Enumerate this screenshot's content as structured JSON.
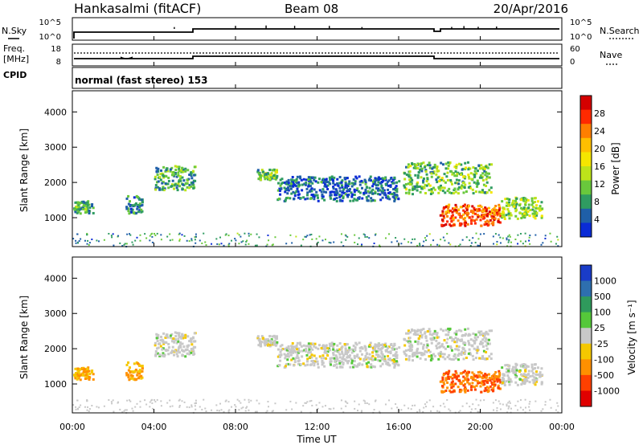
{
  "header": {
    "station": "Hankasalmi (fitACF)",
    "beam": "Beam 08",
    "date": "20/Apr/2016"
  },
  "strip": {
    "nsky_label": "N.Sky",
    "nsearch_label": "N.Search",
    "freq_label_1": "Freq.",
    "freq_label_2": "[MHz]",
    "cpid_label": "CPID",
    "nave_label": "Nave",
    "left_ticks_top": [
      "10^5",
      "10^0"
    ],
    "right_ticks_top": [
      "10^5",
      "10^0"
    ],
    "left_ticks_freq": [
      "18",
      "8"
    ],
    "right_ticks_nave": [
      "60",
      "0"
    ],
    "mode_text": "normal (fast stereo) 153"
  },
  "panels": {
    "y_axis_label": "Slant Range [km]",
    "y_ticks": [
      "4000",
      "3000",
      "2000",
      "1000"
    ],
    "x_ticks": [
      "00:00",
      "04:00",
      "08:00",
      "12:00",
      "16:00",
      "20:00",
      "00:00"
    ],
    "x_axis_label": "Time UT"
  },
  "power_scale": {
    "label": "Power [dB]",
    "ticks": [
      "28",
      "24",
      "20",
      "16",
      "12",
      "8",
      "4"
    ],
    "colors": [
      "#d40000",
      "#ff2a00",
      "#ff7f00",
      "#ffbf00",
      "#f5e600",
      "#bde31a",
      "#69c83c",
      "#2f9c61",
      "#1f5fa8",
      "#0a2bd6"
    ]
  },
  "velocity_scale": {
    "label": "Velocity [m s⁻¹]",
    "ticks": [
      "1000",
      "500",
      "100",
      "25",
      "-25",
      "-100",
      "-500",
      "-1000"
    ],
    "colors": [
      "#1a3cc8",
      "#2e6fae",
      "#2f9a5c",
      "#55c83a",
      "#c8c8c8",
      "#f5c800",
      "#ff9000",
      "#ff4000",
      "#e00000"
    ]
  },
  "chart_data": {
    "type": "heatmap",
    "x_range_hours": [
      0,
      24
    ],
    "y_range_km": [
      180,
      4600
    ],
    "regions": [
      {
        "name": "early-patch",
        "t": [
          0.0,
          1.0
        ],
        "r": [
          1150,
          1500
        ],
        "power_db": 10,
        "velocity": -100
      },
      {
        "name": "patch-3h",
        "t": [
          2.6,
          3.4
        ],
        "r": [
          1150,
          1650
        ],
        "power_db": 8,
        "velocity": -100
      },
      {
        "name": "band-4-6h",
        "t": [
          4.0,
          6.0
        ],
        "r": [
          1800,
          2500
        ],
        "power_db": 10,
        "velocity": 0
      },
      {
        "name": "band-9h",
        "t": [
          9.0,
          10.0
        ],
        "r": [
          2100,
          2400
        ],
        "power_db": 12,
        "velocity": 0
      },
      {
        "name": "diffuse-10-16h",
        "t": [
          10.0,
          16.0
        ],
        "r": [
          1500,
          2200
        ],
        "power_db": 6,
        "velocity": 0
      },
      {
        "name": "evening-band",
        "t": [
          16.2,
          20.5
        ],
        "r": [
          1700,
          2600
        ],
        "power_db": 12,
        "velocity": 0
      },
      {
        "name": "strong-echo",
        "t": [
          18.0,
          21.0
        ],
        "r": [
          800,
          1400
        ],
        "power_db": 26,
        "velocity": -500
      },
      {
        "name": "late-patch",
        "t": [
          21.0,
          23.0
        ],
        "r": [
          1000,
          1600
        ],
        "power_db": 14,
        "velocity": 0
      }
    ]
  }
}
